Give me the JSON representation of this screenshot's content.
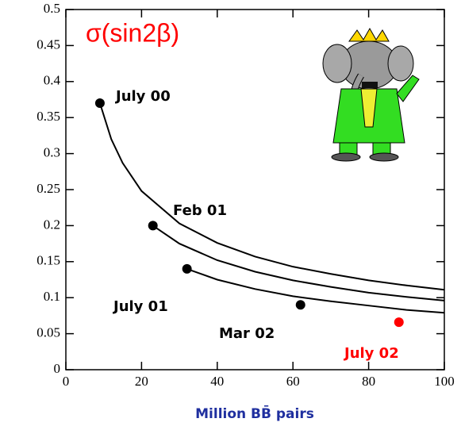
{
  "chart_data": {
    "type": "scatter",
    "title": "σ(sin2β)",
    "xlabel": "Million BB̄ pairs",
    "xlim": [
      0,
      100
    ],
    "xticks": [
      0,
      20,
      40,
      60,
      80,
      100
    ],
    "ylim": [
      0,
      0.5
    ],
    "yticks": [
      0,
      0.05,
      0.1,
      0.15,
      0.2,
      0.25,
      0.3,
      0.35,
      0.4,
      0.45,
      0.5
    ],
    "points": {
      "x": [
        9,
        23,
        32,
        62,
        88
      ],
      "values": [
        0.37,
        0.2,
        0.14,
        0.09,
        0.066
      ],
      "colors": [
        "#000000",
        "#000000",
        "#000000",
        "#000000",
        "#ff0000"
      ]
    },
    "curves": [
      {
        "color": "#000000",
        "x": [
          9,
          12,
          15,
          20,
          30,
          40,
          50,
          60,
          70,
          80,
          90,
          100
        ],
        "values": [
          0.37,
          0.32,
          0.287,
          0.248,
          0.203,
          0.176,
          0.157,
          0.143,
          0.133,
          0.124,
          0.117,
          0.111
        ]
      },
      {
        "color": "#000000",
        "x": [
          23,
          30,
          40,
          50,
          60,
          70,
          80,
          90,
          100
        ],
        "values": [
          0.2,
          0.175,
          0.152,
          0.136,
          0.124,
          0.115,
          0.107,
          0.101,
          0.096
        ]
      },
      {
        "color": "#000000",
        "x": [
          32,
          40,
          50,
          60,
          70,
          80,
          90,
          100
        ],
        "values": [
          0.14,
          0.125,
          0.112,
          0.102,
          0.095,
          0.089,
          0.083,
          0.079
        ]
      }
    ],
    "annotations": [
      {
        "text": "July 00",
        "color": "#000000"
      },
      {
        "text": "Feb 01",
        "color": "#000000"
      },
      {
        "text": "July 01",
        "color": "#000000"
      },
      {
        "text": "Mar 02",
        "color": "#000000"
      },
      {
        "text": "July 02",
        "color": "#ff0000"
      }
    ]
  }
}
